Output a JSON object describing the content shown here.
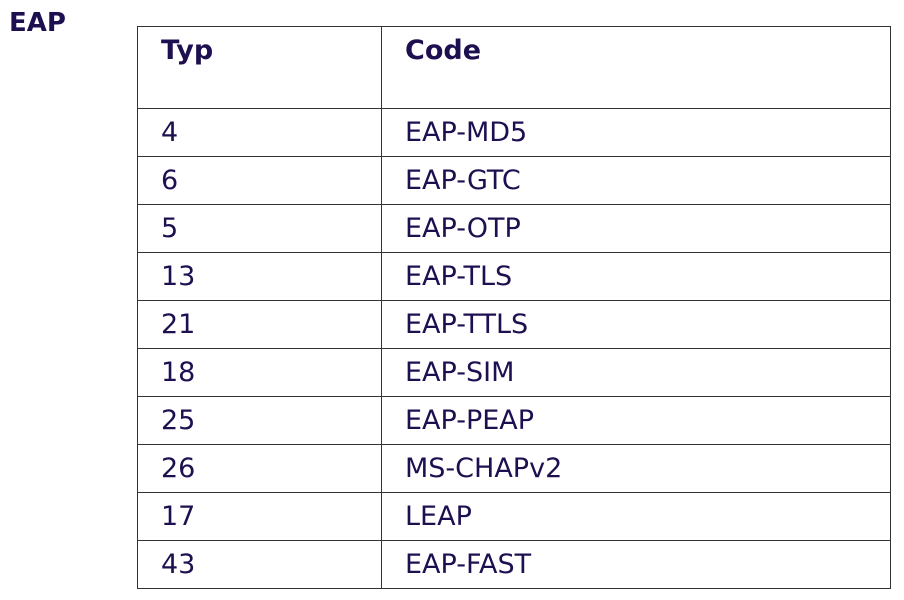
{
  "title": "EAP",
  "table": {
    "headers": [
      "Typ",
      "Code"
    ],
    "rows": [
      [
        "4",
        "EAP-MD5"
      ],
      [
        "6",
        "EAP-GTC"
      ],
      [
        "5",
        "EAP-OTP"
      ],
      [
        "13",
        "EAP-TLS"
      ],
      [
        "21",
        "EAP-TTLS"
      ],
      [
        "18",
        "EAP-SIM"
      ],
      [
        "25",
        "EAP-PEAP"
      ],
      [
        "26",
        "MS-CHAPv2"
      ],
      [
        "17",
        "LEAP"
      ],
      [
        "43",
        "EAP-FAST"
      ]
    ]
  },
  "colors": {
    "text": "#1e0f50",
    "border": "#333333"
  }
}
